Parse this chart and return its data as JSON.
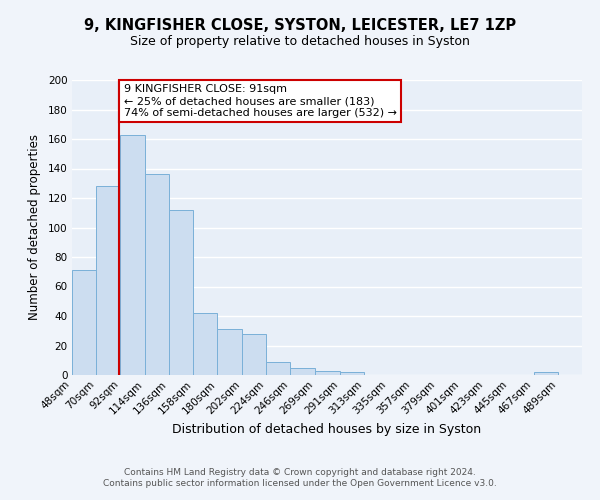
{
  "title": "9, KINGFISHER CLOSE, SYSTON, LEICESTER, LE7 1ZP",
  "subtitle": "Size of property relative to detached houses in Syston",
  "xlabel": "Distribution of detached houses by size in Syston",
  "ylabel": "Number of detached properties",
  "bar_color": "#ccddf0",
  "bar_edge_color": "#7ab0d8",
  "background_color": "#e8eff8",
  "grid_color": "#ffffff",
  "fig_background": "#f0f4fa",
  "vline_color": "#cc0000",
  "vline_x": 91,
  "annotation_text": "9 KINGFISHER CLOSE: 91sqm\n← 25% of detached houses are smaller (183)\n74% of semi-detached houses are larger (532) →",
  "annotation_box_facecolor": "#ffffff",
  "annotation_box_edgecolor": "#cc0000",
  "xlim": [
    48,
    511
  ],
  "ylim": [
    0,
    200
  ],
  "yticks": [
    0,
    20,
    40,
    60,
    80,
    100,
    120,
    140,
    160,
    180,
    200
  ],
  "bin_edges": [
    48,
    70,
    92,
    114,
    136,
    158,
    180,
    202,
    224,
    246,
    269,
    291,
    313,
    335,
    357,
    379,
    401,
    423,
    445,
    467,
    489,
    511
  ],
  "bin_labels": [
    "48sqm",
    "70sqm",
    "92sqm",
    "114sqm",
    "136sqm",
    "158sqm",
    "180sqm",
    "202sqm",
    "224sqm",
    "246sqm",
    "269sqm",
    "291sqm",
    "313sqm",
    "335sqm",
    "357sqm",
    "379sqm",
    "401sqm",
    "423sqm",
    "445sqm",
    "467sqm",
    "489sqm"
  ],
  "bar_heights": [
    71,
    128,
    163,
    136,
    112,
    42,
    31,
    28,
    9,
    5,
    3,
    2,
    0,
    0,
    0,
    0,
    0,
    0,
    0,
    2,
    0
  ],
  "footer_text": "Contains HM Land Registry data © Crown copyright and database right 2024.\nContains public sector information licensed under the Open Government Licence v3.0.",
  "title_fontsize": 10.5,
  "subtitle_fontsize": 9,
  "xlabel_fontsize": 9,
  "ylabel_fontsize": 8.5,
  "tick_fontsize": 7.5,
  "footer_fontsize": 6.5,
  "annotation_fontsize": 8
}
